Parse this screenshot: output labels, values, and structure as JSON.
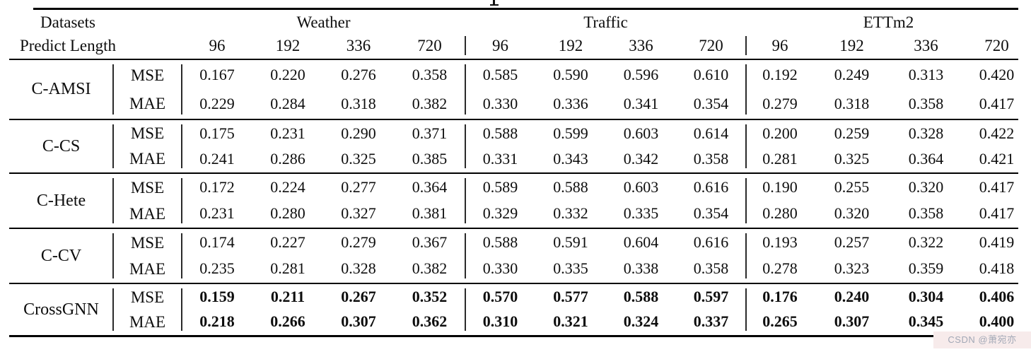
{
  "watermark": "CSDN @萧宛亦",
  "table": {
    "header": {
      "row1_left": "Datasets",
      "row2_left": "Predict Length",
      "groups": [
        {
          "name": "Weather",
          "lengths": [
            "96",
            "192",
            "336",
            "720"
          ]
        },
        {
          "name": "Traffic",
          "lengths": [
            "96",
            "192",
            "336",
            "720"
          ]
        },
        {
          "name": "ETTm2",
          "lengths": [
            "96",
            "192",
            "336",
            "720"
          ]
        }
      ]
    },
    "methods": [
      {
        "name": "C-AMSI",
        "bold": false,
        "rows": [
          {
            "metric": "MSE",
            "values": [
              "0.167",
              "0.220",
              "0.276",
              "0.358",
              "0.585",
              "0.590",
              "0.596",
              "0.610",
              "0.192",
              "0.249",
              "0.313",
              "0.420"
            ]
          },
          {
            "metric": "MAE",
            "values": [
              "0.229",
              "0.284",
              "0.318",
              "0.382",
              "0.330",
              "0.336",
              "0.341",
              "0.354",
              "0.279",
              "0.318",
              "0.358",
              "0.417"
            ]
          }
        ]
      },
      {
        "name": "C-CS",
        "bold": false,
        "rows": [
          {
            "metric": "MSE",
            "values": [
              "0.175",
              "0.231",
              "0.290",
              "0.371",
              "0.588",
              "0.599",
              "0.603",
              "0.614",
              "0.200",
              "0.259",
              "0.328",
              "0.422"
            ]
          },
          {
            "metric": "MAE",
            "values": [
              "0.241",
              "0.286",
              "0.325",
              "0.385",
              "0.331",
              "0.343",
              "0.342",
              "0.358",
              "0.281",
              "0.325",
              "0.364",
              "0.421"
            ]
          }
        ]
      },
      {
        "name": "C-Hete",
        "bold": false,
        "rows": [
          {
            "metric": "MSE",
            "values": [
              "0.172",
              "0.224",
              "0.277",
              "0.364",
              "0.589",
              "0.588",
              "0.603",
              "0.616",
              "0.190",
              "0.255",
              "0.320",
              "0.417"
            ]
          },
          {
            "metric": "MAE",
            "values": [
              "0.231",
              "0.280",
              "0.327",
              "0.381",
              "0.329",
              "0.332",
              "0.335",
              "0.354",
              "0.280",
              "0.320",
              "0.358",
              "0.417"
            ]
          }
        ]
      },
      {
        "name": "C-CV",
        "bold": false,
        "rows": [
          {
            "metric": "MSE",
            "values": [
              "0.174",
              "0.227",
              "0.279",
              "0.367",
              "0.588",
              "0.591",
              "0.604",
              "0.616",
              "0.193",
              "0.257",
              "0.322",
              "0.419"
            ]
          },
          {
            "metric": "MAE",
            "values": [
              "0.235",
              "0.281",
              "0.328",
              "0.382",
              "0.330",
              "0.335",
              "0.338",
              "0.358",
              "0.278",
              "0.323",
              "0.359",
              "0.418"
            ]
          }
        ]
      },
      {
        "name": "CrossGNN",
        "bold": true,
        "rows": [
          {
            "metric": "MSE",
            "values": [
              "0.159",
              "0.211",
              "0.267",
              "0.352",
              "0.570",
              "0.577",
              "0.588",
              "0.597",
              "0.176",
              "0.240",
              "0.304",
              "0.406"
            ]
          },
          {
            "metric": "MAE",
            "values": [
              "0.218",
              "0.266",
              "0.307",
              "0.362",
              "0.310",
              "0.321",
              "0.324",
              "0.337",
              "0.265",
              "0.307",
              "0.345",
              "0.400"
            ]
          }
        ]
      }
    ]
  }
}
